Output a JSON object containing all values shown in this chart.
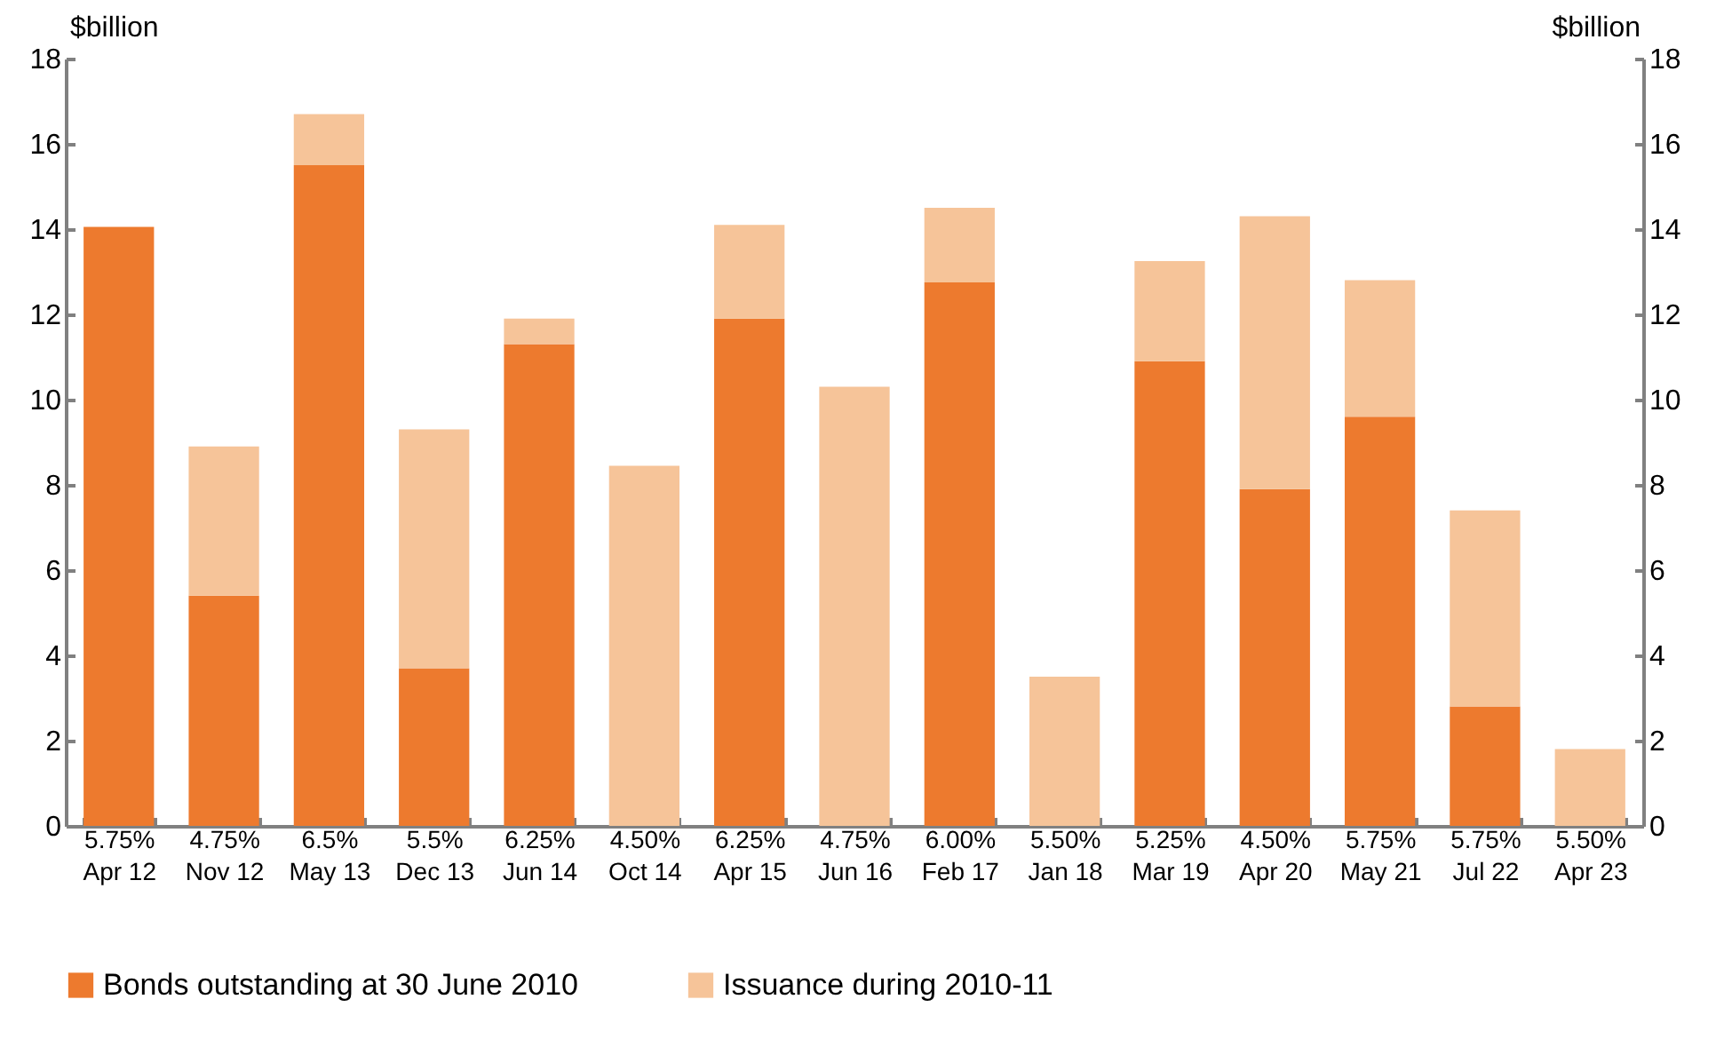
{
  "chart_data": {
    "type": "bar",
    "stacked": true,
    "ylabel": "$billion",
    "y2label": "$billion",
    "categories": [
      "5.75%\nApr 12",
      "4.75%\nNov 12",
      "6.5%\nMay 13",
      "5.5%\nDec 13",
      "6.25%\nJun 14",
      "4.50%\nOct 14",
      "6.25%\nApr 15",
      "4.75%\nJun 16",
      "6.00%\nFeb 17",
      "5.50%\nJan 18",
      "5.25%\nMar 19",
      "4.50%\nApr 20",
      "5.75%\nMay 21",
      "5.75%\nJul 22",
      "5.50%\nApr 23"
    ],
    "series": [
      {
        "name": "Bonds outstanding at 30 June 2010",
        "color": "#ed7a2e",
        "values": [
          14.05,
          5.4,
          15.5,
          3.7,
          11.3,
          0,
          11.9,
          0,
          12.75,
          0,
          10.9,
          7.9,
          9.6,
          2.8,
          0
        ]
      },
      {
        "name": "Issuance during 2010-11",
        "color": "#f6c499",
        "values": [
          0,
          3.5,
          1.2,
          5.6,
          0.6,
          8.45,
          2.2,
          10.3,
          1.75,
          3.5,
          2.35,
          6.4,
          3.2,
          4.6,
          1.8
        ]
      }
    ],
    "ylim": [
      0,
      18
    ],
    "yticks": [
      0,
      2,
      4,
      6,
      8,
      10,
      12,
      14,
      16,
      18
    ],
    "y2lim": [
      0,
      18
    ],
    "y2ticks": [
      0,
      2,
      4,
      6,
      8,
      10,
      12,
      14,
      16,
      18
    ],
    "legend": "bottom"
  }
}
